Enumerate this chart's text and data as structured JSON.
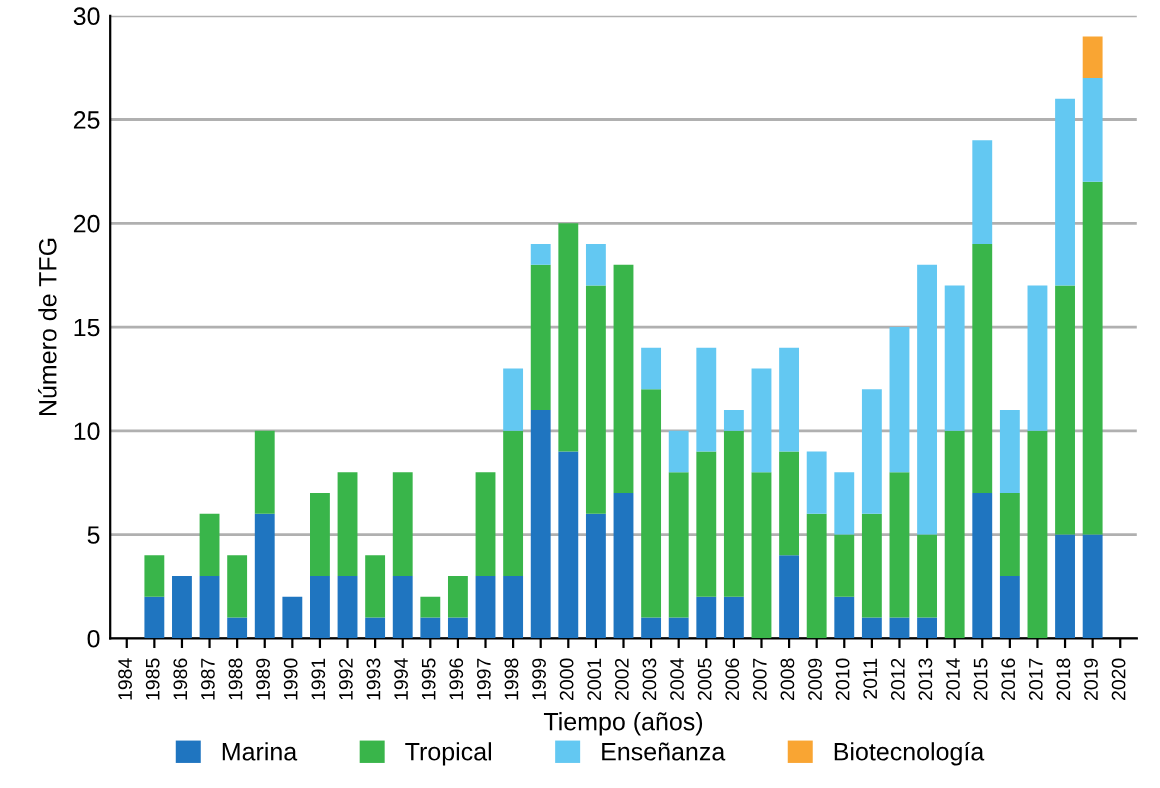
{
  "chart_data": {
    "type": "bar",
    "stacked": true,
    "xlabel": "Tiempo (años)",
    "ylabel": "Número de TFG",
    "categories": [
      "1984",
      "1985",
      "1986",
      "1987",
      "1988",
      "1989",
      "1990",
      "1991",
      "1992",
      "1993",
      "1994",
      "1995",
      "1996",
      "1997",
      "1998",
      "1999",
      "2000",
      "2001",
      "2002",
      "2003",
      "2004",
      "2005",
      "2006",
      "2007",
      "2008",
      "2009",
      "2010",
      "2011",
      "2012",
      "2013",
      "2014",
      "2015",
      "2016",
      "2017",
      "2018",
      "2019",
      "2020"
    ],
    "series": [
      {
        "name": "Marina",
        "color": "#1f75c0",
        "values": [
          0,
          2,
          3,
          3,
          1,
          6,
          2,
          3,
          3,
          1,
          3,
          1,
          1,
          3,
          3,
          11,
          9,
          6,
          7,
          1,
          1,
          2,
          2,
          0,
          4,
          0,
          2,
          1,
          1,
          1,
          0,
          7,
          3,
          0,
          5,
          5,
          0
        ]
      },
      {
        "name": "Tropical",
        "color": "#39b54a",
        "values": [
          0,
          2,
          0,
          3,
          3,
          4,
          0,
          4,
          5,
          3,
          5,
          1,
          2,
          5,
          7,
          7,
          11,
          11,
          11,
          11,
          7,
          7,
          8,
          8,
          5,
          6,
          3,
          5,
          7,
          4,
          10,
          12,
          4,
          10,
          12,
          17,
          0
        ]
      },
      {
        "name": "Enseñanza",
        "color": "#63c8f2",
        "values": [
          0,
          0,
          0,
          0,
          0,
          0,
          0,
          0,
          0,
          0,
          0,
          0,
          0,
          0,
          3,
          1,
          0,
          2,
          0,
          2,
          2,
          5,
          1,
          5,
          5,
          3,
          3,
          6,
          7,
          13,
          7,
          5,
          4,
          7,
          9,
          5,
          0
        ]
      },
      {
        "name": "Biotecnología",
        "color": "#f9a533",
        "values": [
          0,
          0,
          0,
          0,
          0,
          0,
          0,
          0,
          0,
          0,
          0,
          0,
          0,
          0,
          0,
          0,
          0,
          0,
          0,
          0,
          0,
          0,
          0,
          0,
          0,
          0,
          0,
          0,
          0,
          0,
          0,
          0,
          0,
          0,
          0,
          2,
          0
        ]
      }
    ],
    "ylim": [
      0,
      30
    ],
    "yticks": [
      0,
      5,
      10,
      15,
      20,
      25,
      30
    ],
    "grid": "y",
    "legend": "bottom"
  }
}
